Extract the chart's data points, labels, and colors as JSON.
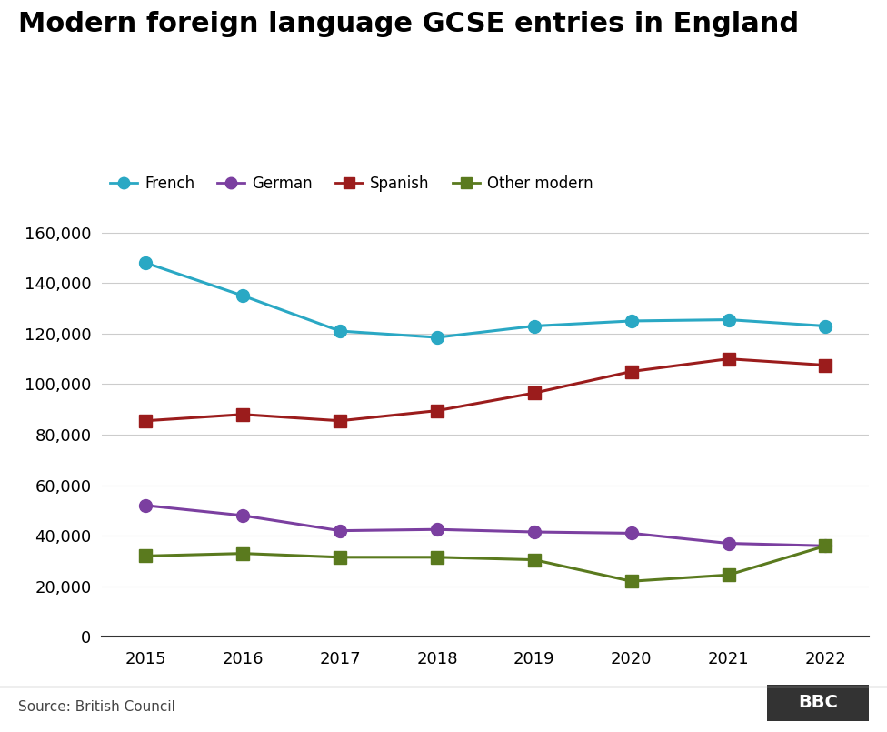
{
  "title": "Modern foreign language GCSE entries in England",
  "years": [
    2015,
    2016,
    2017,
    2018,
    2019,
    2020,
    2021,
    2022
  ],
  "series": {
    "French": {
      "values": [
        148000,
        135000,
        121000,
        118500,
        123000,
        125000,
        125500,
        123000
      ],
      "color": "#2AA8C4",
      "marker": "o"
    },
    "German": {
      "values": [
        52000,
        48000,
        42000,
        42500,
        41500,
        41000,
        37000,
        36000
      ],
      "color": "#7B3FA0",
      "marker": "o"
    },
    "Spanish": {
      "values": [
        85500,
        88000,
        85500,
        89500,
        96500,
        105000,
        110000,
        107500
      ],
      "color": "#9B1C1C",
      "marker": "s"
    },
    "Other modern": {
      "values": [
        32000,
        33000,
        31500,
        31500,
        30500,
        22000,
        24500,
        36000
      ],
      "color": "#5A7A1E",
      "marker": "s"
    }
  },
  "ylim": [
    0,
    168000
  ],
  "yticks": [
    0,
    20000,
    40000,
    60000,
    80000,
    100000,
    120000,
    140000,
    160000
  ],
  "xlim": [
    2014.55,
    2022.45
  ],
  "source_text": "Source: British Council",
  "background_color": "#ffffff",
  "title_fontsize": 22,
  "legend_fontsize": 12,
  "tick_fontsize": 13,
  "grid_color": "#cccccc",
  "spine_color": "#333333",
  "source_color": "#444444"
}
